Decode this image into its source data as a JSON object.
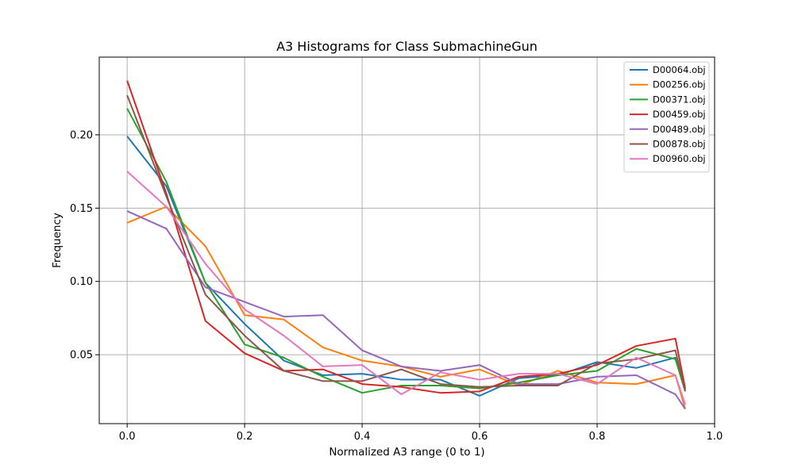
{
  "chart_data": {
    "type": "line",
    "title": "A3 Histograms for Class SubmachineGun",
    "xlabel": "Normalized A3 range (0 to 1)",
    "ylabel": "Frequency",
    "xlim": [
      -0.0475,
      1.0
    ],
    "ylim": [
      0.003,
      0.253
    ],
    "xticks": [
      0.0,
      0.2,
      0.4,
      0.6,
      0.8,
      1.0
    ],
    "xtick_labels": [
      "0.0",
      "0.2",
      "0.4",
      "0.6",
      "0.8",
      "1.0"
    ],
    "yticks": [
      0.05,
      0.1,
      0.15,
      0.2
    ],
    "ytick_labels": [
      "0.05",
      "0.10",
      "0.15",
      "0.20"
    ],
    "grid": true,
    "legend_position": "top-right",
    "x": [
      0.0,
      0.0667,
      0.1333,
      0.2,
      0.2667,
      0.3333,
      0.4,
      0.4667,
      0.5333,
      0.6,
      0.6667,
      0.7333,
      0.8,
      0.8667,
      0.9333,
      0.95
    ],
    "series": [
      {
        "name": "D00064.obj",
        "color": "#1f77b4",
        "values": [
          0.199,
          0.165,
          0.099,
          0.071,
          0.046,
          0.036,
          0.037,
          0.033,
          0.033,
          0.022,
          0.034,
          0.036,
          0.045,
          0.041,
          0.048,
          0.026
        ]
      },
      {
        "name": "D00256.obj",
        "color": "#ff7f0e",
        "values": [
          0.14,
          0.151,
          0.124,
          0.077,
          0.074,
          0.055,
          0.046,
          0.042,
          0.035,
          0.04,
          0.029,
          0.039,
          0.031,
          0.03,
          0.036,
          0.013
        ]
      },
      {
        "name": "D00371.obj",
        "color": "#2ca02c",
        "values": [
          0.218,
          0.168,
          0.099,
          0.057,
          0.048,
          0.035,
          0.024,
          0.029,
          0.029,
          0.027,
          0.031,
          0.036,
          0.039,
          0.054,
          0.047,
          0.025
        ]
      },
      {
        "name": "D00459.obj",
        "color": "#d62728",
        "values": [
          0.237,
          0.16,
          0.073,
          0.051,
          0.039,
          0.04,
          0.03,
          0.028,
          0.024,
          0.025,
          0.035,
          0.037,
          0.043,
          0.056,
          0.061,
          0.027
        ]
      },
      {
        "name": "D00489.obj",
        "color": "#9467bd",
        "values": [
          0.148,
          0.136,
          0.096,
          0.086,
          0.076,
          0.077,
          0.053,
          0.042,
          0.039,
          0.043,
          0.03,
          0.03,
          0.035,
          0.036,
          0.023,
          0.013
        ]
      },
      {
        "name": "D00878.obj",
        "color": "#8c564b",
        "values": [
          0.227,
          0.158,
          0.091,
          0.063,
          0.039,
          0.032,
          0.032,
          0.04,
          0.03,
          0.028,
          0.029,
          0.029,
          0.044,
          0.047,
          0.053,
          0.025
        ]
      },
      {
        "name": "D00960.obj",
        "color": "#e377c2",
        "values": [
          0.175,
          0.151,
          0.112,
          0.081,
          0.063,
          0.042,
          0.043,
          0.023,
          0.038,
          0.033,
          0.037,
          0.037,
          0.03,
          0.048,
          0.036,
          0.016
        ]
      }
    ]
  }
}
